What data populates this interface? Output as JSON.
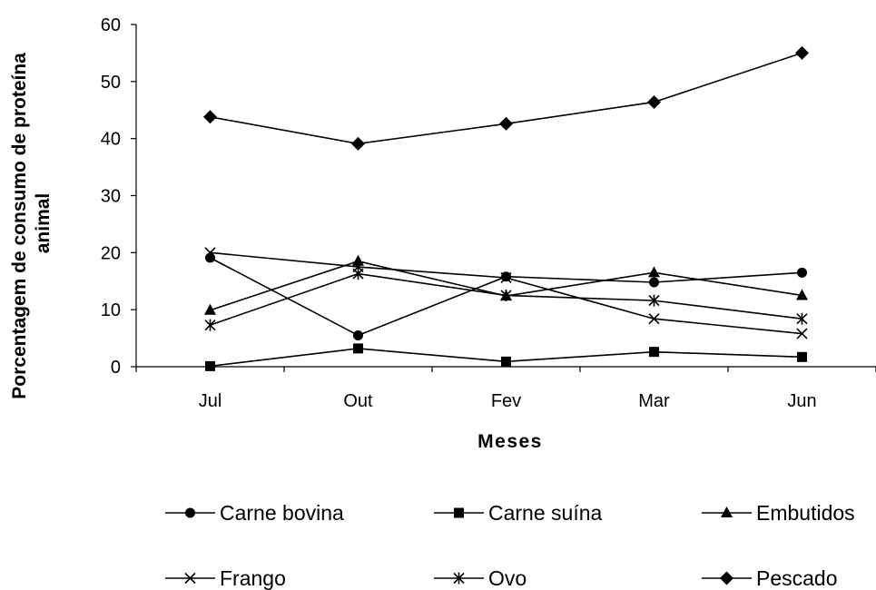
{
  "chart_data": {
    "type": "line",
    "categories": [
      "Jul",
      "Out",
      "Fev",
      "Mar",
      "Jun"
    ],
    "xlabel": "Meses",
    "ylabel_lines": [
      "Porcentagem de consumo de proteína",
      "animal"
    ],
    "ylim": [
      0,
      60
    ],
    "yticks": [
      0,
      10,
      20,
      30,
      40,
      50,
      60
    ],
    "grid": false,
    "legend_position": "bottom",
    "series": [
      {
        "name": "Carne bovina",
        "marker": "circle",
        "values": [
          19.1,
          5.5,
          15.8,
          14.8,
          16.5
        ]
      },
      {
        "name": "Carne suína",
        "marker": "square",
        "values": [
          0.1,
          3.2,
          0.9,
          2.6,
          1.7
        ]
      },
      {
        "name": "Embutidos",
        "marker": "triangle",
        "values": [
          9.9,
          18.5,
          12.4,
          16.5,
          12.5
        ]
      },
      {
        "name": "Frango",
        "marker": "x",
        "values": [
          20.0,
          17.5,
          15.6,
          8.4,
          5.8
        ]
      },
      {
        "name": "Ovo",
        "marker": "asterisk",
        "values": [
          7.3,
          16.3,
          12.5,
          11.6,
          8.4
        ]
      },
      {
        "name": "Pescado",
        "marker": "diamond",
        "values": [
          43.8,
          39.1,
          42.6,
          46.4,
          55.0
        ]
      }
    ]
  }
}
